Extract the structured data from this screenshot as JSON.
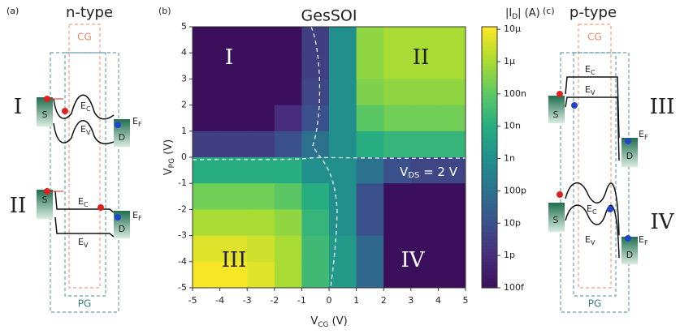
{
  "chart_data": {
    "type": "heatmap",
    "title": "GesSOI",
    "panel_label": "(b)",
    "xlabel": [
      "V",
      "CG",
      " (V)"
    ],
    "ylabel": [
      "V",
      "PG",
      " (V)"
    ],
    "x": [
      -4.5,
      -3.5,
      -2.5,
      -1.5,
      -0.5,
      0.5,
      1.5,
      2.5,
      3.5,
      4.5
    ],
    "y": [
      4.5,
      3.5,
      2.5,
      1.5,
      0.5,
      -0.5,
      -1.5,
      -2.5,
      -3.5,
      -4.5
    ],
    "z": [
      [
        1e-13,
        1e-13,
        1e-13,
        1e-13,
        3e-12,
        1e-09,
        5e-07,
        1e-06,
        1e-06,
        1e-06
      ],
      [
        1e-13,
        1e-13,
        1e-13,
        1e-13,
        3e-12,
        1e-09,
        5e-07,
        1e-06,
        1e-06,
        1e-06
      ],
      [
        1e-13,
        1e-13,
        1e-13,
        1e-13,
        5e-12,
        1e-09,
        3e-07,
        5e-07,
        5e-07,
        5e-07
      ],
      [
        1e-13,
        1e-13,
        1e-13,
        1e-12,
        1e-11,
        1e-09,
        1e-07,
        2e-07,
        2e-07,
        2e-07
      ],
      [
        3e-12,
        3e-12,
        3e-12,
        1e-11,
        1e-10,
        1e-09,
        1e-08,
        2e-08,
        2e-08,
        2e-08
      ],
      [
        1e-08,
        1e-08,
        1e-08,
        1e-08,
        1e-09,
        1e-09,
        1e-10,
        1e-11,
        5e-12,
        5e-12
      ],
      [
        2e-07,
        2e-07,
        2e-07,
        1e-07,
        1e-08,
        1e-09,
        1e-11,
        1e-13,
        1e-13,
        1e-13
      ],
      [
        1e-06,
        1e-06,
        1e-06,
        5e-07,
        2e-08,
        1e-09,
        1e-11,
        1e-13,
        1e-13,
        1e-13
      ],
      [
        5e-06,
        5e-06,
        3e-06,
        1e-06,
        3e-08,
        2e-09,
        5e-11,
        1e-13,
        1e-13,
        1e-13
      ],
      [
        1e-05,
        1e-05,
        5e-06,
        1e-06,
        3e-08,
        2e-09,
        5e-11,
        1e-13,
        1e-13,
        1e-13
      ]
    ],
    "xlim": [
      -5,
      5
    ],
    "ylim": [
      -5,
      5
    ],
    "xticks": [
      -5,
      -4,
      -3,
      -2,
      -1,
      0,
      1,
      2,
      3,
      4,
      5
    ],
    "yticks": [
      5,
      4,
      3,
      2,
      1,
      0,
      -1,
      -2,
      -3,
      -4,
      -5
    ],
    "zlim": [
      1e-13,
      1.2e-05
    ],
    "zscale": "log",
    "zlabel": [
      "|I",
      "D",
      "| (A)"
    ],
    "zticks": [
      {
        "value": 1e-05,
        "label": "10µ"
      },
      {
        "value": 1e-06,
        "label": "1µ"
      },
      {
        "value": 1e-07,
        "label": "100n"
      },
      {
        "value": 1e-08,
        "label": "10n"
      },
      {
        "value": 1e-09,
        "label": "1n"
      },
      {
        "value": 1e-10,
        "label": "100p"
      },
      {
        "value": 1e-11,
        "label": "10p"
      },
      {
        "value": 1e-12,
        "label": "1p"
      },
      {
        "value": 1e-13,
        "label": "100f"
      }
    ],
    "colorscale": [
      "#3b0f5c",
      "#472d7b",
      "#3b528b",
      "#2c728e",
      "#21918c",
      "#28ae80",
      "#5ec962",
      "#addc30",
      "#fde725"
    ],
    "annotations": [
      "I",
      "II",
      "III",
      "IV"
    ],
    "vds_label": [
      "V",
      "DS",
      " = 2 V"
    ]
  },
  "panel_a": {
    "label": "(a)",
    "title": "n-type",
    "cg": "CG",
    "pg": "PG",
    "diagrams": [
      {
        "roman": "I",
        "s": "S",
        "d": "D",
        "ec": [
          "E",
          "C"
        ],
        "ev": [
          "E",
          "V"
        ],
        "ef": [
          "E",
          "F"
        ]
      },
      {
        "roman": "II",
        "s": "S",
        "d": "D",
        "ec": [
          "E",
          "C"
        ],
        "ev": [
          "E",
          "V"
        ],
        "ef": [
          "E",
          "F"
        ]
      }
    ]
  },
  "panel_c": {
    "label": "(c)",
    "title": "p-type",
    "cg": "CG",
    "pg": "PG",
    "diagrams": [
      {
        "roman": "III",
        "s": "S",
        "d": "D",
        "ec": [
          "E",
          "C"
        ],
        "ev": [
          "E",
          "V"
        ],
        "ef": [
          "E",
          "F"
        ]
      },
      {
        "roman": "IV",
        "s": "S",
        "d": "D",
        "ec": [
          "E",
          "C"
        ],
        "ev": [
          "E",
          "V"
        ],
        "ef": [
          "E",
          "F"
        ]
      }
    ]
  }
}
